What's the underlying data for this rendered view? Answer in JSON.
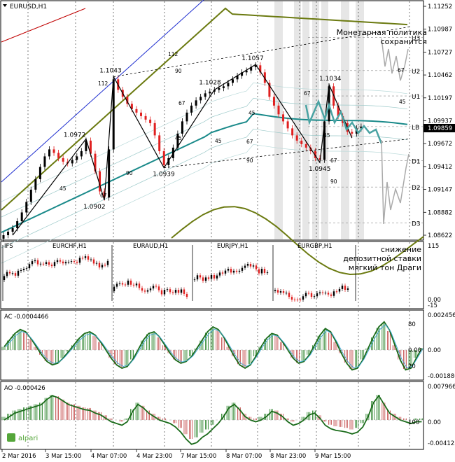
{
  "header": {
    "symbol": "EURUSD,H1"
  },
  "brand": "alpari",
  "colors": {
    "bull_candle": "#000000",
    "bear_candle": "#e02020",
    "regression_mid": "#1a8a8a",
    "outer_band": "#6b7a10",
    "blue_band": "#2030d0",
    "red_band": "#c00000",
    "forecast": "#4aa3a3",
    "ac_line": "#1a6b1a",
    "price_tag": "#000000"
  },
  "annotations": {
    "monetary": "Монетарная политика сохранится",
    "deposit": "снижение депозитной ставки мягкий тон Драги"
  },
  "chart_data": [
    {
      "type": "candlestick",
      "title": "EURUSD,H1",
      "yticks": [
        "1.11252",
        "1.10987",
        "1.10727",
        "1.10462",
        "1.10197",
        "1.09937",
        "1.09672",
        "1.09412",
        "1.09147",
        "1.08882",
        "1.08622"
      ],
      "ylim": [
        1.0855,
        1.1132
      ],
      "current_price": "1.09859",
      "pivot_labels": [
        "U3",
        "U2",
        "U1",
        "LB",
        "D1",
        "D2",
        "D3"
      ],
      "pivot_levels": [
        1.1088,
        1.105,
        1.1021,
        1.0986,
        1.0947,
        1.0917,
        1.0876
      ],
      "zigzag": [
        {
          "i": 2,
          "p": 1.0862
        },
        {
          "i": 18,
          "p": 1.0972
        },
        {
          "i": 22,
          "p": 1.0902
        },
        {
          "i": 24,
          "p": 1.1043
        },
        {
          "i": 35,
          "p": 1.0939
        },
        {
          "i": 46,
          "p": 1.1028
        },
        {
          "i": 55,
          "p": 1.1057
        },
        {
          "i": 69,
          "p": 1.0945
        },
        {
          "i": 71,
          "p": 1.1034
        },
        {
          "i": 76,
          "p": 1.0973
        }
      ],
      "price_labels": [
        "1.0972",
        "1.1043",
        "1.0902",
        "1.0939",
        "1.1028",
        "1.1057",
        "1.0945",
        "1.1034"
      ],
      "ratio_labels": [
        "112",
        "90",
        "67",
        "45",
        "112",
        "90",
        "67",
        "45",
        "67",
        "45",
        "67",
        "90",
        "67",
        "45"
      ],
      "time_labels": [
        "2 Mar 2016",
        "3 Mar 15:00",
        "4 Mar 07:00",
        "4 Mar 23:00",
        "7 Mar 15:00",
        "8 Mar 07:00",
        "8 Mar 23:00",
        "9 Mar 15:00"
      ],
      "closes": [
        1.0862,
        1.0866,
        1.087,
        1.0878,
        1.0888,
        1.09,
        1.0914,
        1.0926,
        1.094,
        1.0952,
        1.096,
        1.0956,
        1.095,
        1.0946,
        1.0944,
        1.0948,
        1.0952,
        1.0958,
        1.097,
        1.0955,
        1.0935,
        1.0912,
        1.0905,
        1.096,
        1.104,
        1.1028,
        1.102,
        1.1012,
        1.1006,
        1.1002,
        1.0998,
        1.0994,
        1.099,
        1.0976,
        1.0958,
        1.0942,
        1.095,
        1.0962,
        1.0978,
        1.0992,
        1.1002,
        1.101,
        1.1016,
        1.102,
        1.1024,
        1.1026,
        1.1028,
        1.103,
        1.1032,
        1.1036,
        1.104,
        1.1044,
        1.1048,
        1.105,
        1.1054,
        1.1056,
        1.1048,
        1.1036,
        1.102,
        1.101,
        1.1,
        1.0992,
        1.0984,
        1.0976,
        1.097,
        1.0966,
        1.0962,
        1.0958,
        1.095,
        1.0948,
        1.0992,
        1.1032,
        1.101,
        1.0998,
        1.099,
        1.098,
        1.0978,
        1.0984,
        1.0986
      ]
    },
    {
      "type": "candlestick",
      "title": "IFS",
      "subcharts": [
        "EURCHF,H1",
        "EURAUD,H1",
        "EURJPY,H1",
        "EURGBP,H1"
      ],
      "yticks": [
        "115",
        "0.00",
        "-15"
      ]
    },
    {
      "type": "bar",
      "title": "AC -0.0004466",
      "yticks_left": [
        "80",
        "0.00",
        "20"
      ],
      "yticks_right": [
        "0.002456",
        "0.00",
        "-0.001880"
      ],
      "values": [
        0.1,
        0.3,
        0.5,
        0.62,
        0.55,
        0.35,
        0.1,
        -0.15,
        -0.35,
        -0.45,
        -0.4,
        -0.25,
        -0.05,
        0.15,
        0.35,
        0.5,
        0.55,
        0.45,
        0.25,
        0.0,
        -0.25,
        -0.45,
        -0.55,
        -0.5,
        -0.3,
        0.0,
        0.3,
        0.5,
        0.55,
        0.4,
        0.15,
        -0.1,
        -0.3,
        -0.4,
        -0.35,
        -0.2,
        0.05,
        0.3,
        0.55,
        0.7,
        0.62,
        0.4,
        0.1,
        -0.2,
        -0.45,
        -0.55,
        -0.45,
        -0.2,
        0.1,
        0.35,
        0.5,
        0.45,
        0.25,
        0.0,
        -0.25,
        -0.4,
        -0.35,
        -0.15,
        0.15,
        0.45,
        0.65,
        0.55,
        0.25,
        -0.1,
        -0.4,
        -0.6,
        -0.55,
        -0.3,
        0.05,
        0.4,
        0.7,
        0.85,
        0.6,
        0.15,
        -0.3,
        -0.6,
        -0.55,
        -0.25,
        0.05
      ]
    },
    {
      "type": "bar",
      "title": "AO -0.000426",
      "yticks_right": [
        "0.007966",
        "0.00",
        "-0.004125"
      ],
      "ytick_left": "100",
      "values": [
        0.1,
        0.2,
        0.3,
        0.35,
        0.4,
        0.45,
        0.5,
        0.55,
        0.7,
        0.8,
        0.75,
        0.65,
        0.55,
        0.5,
        0.45,
        0.4,
        0.38,
        0.3,
        0.25,
        0.15,
        0.05,
        0.0,
        -0.05,
        0.05,
        0.35,
        0.55,
        0.45,
        0.3,
        0.2,
        0.1,
        0.05,
        0.0,
        -0.1,
        -0.25,
        -0.45,
        -0.6,
        -0.55,
        -0.4,
        -0.3,
        -0.15,
        0.0,
        0.2,
        0.45,
        0.55,
        0.4,
        0.2,
        0.1,
        0.05,
        0.1,
        0.2,
        0.35,
        0.3,
        0.2,
        0.05,
        -0.05,
        0.0,
        0.1,
        0.25,
        0.3,
        0.15,
        -0.05,
        -0.15,
        -0.2,
        -0.22,
        -0.25,
        -0.3,
        -0.25,
        -0.1,
        0.2,
        0.6,
        0.8,
        0.55,
        0.3,
        0.2,
        0.1,
        0.05,
        0.0,
        0.05,
        0.05
      ]
    }
  ]
}
